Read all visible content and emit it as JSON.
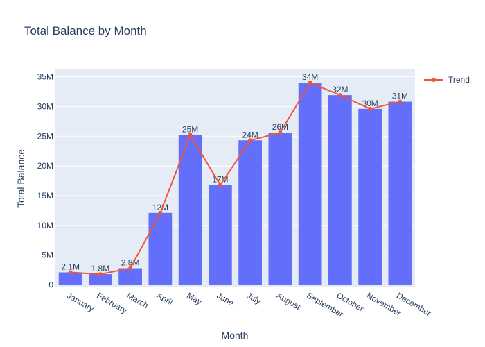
{
  "chart_data": {
    "type": "bar",
    "title": "Total Balance by Month",
    "xlabel": "Month",
    "ylabel": "Total Balance",
    "categories": [
      "January",
      "February",
      "March",
      "April",
      "May",
      "June",
      "July",
      "August",
      "September",
      "October",
      "November",
      "December"
    ],
    "values": [
      2.1,
      1.8,
      2.8,
      12.1,
      25.2,
      16.8,
      24.3,
      25.6,
      34.0,
      31.9,
      29.6,
      30.8
    ],
    "value_unit_multiplier": 1000000,
    "data_labels": [
      "2.1M",
      "1.8M",
      "2.8M",
      "12M",
      "25M",
      "17M",
      "24M",
      "26M",
      "34M",
      "32M",
      "30M",
      "31M"
    ],
    "series": [
      {
        "name": "Trend",
        "type": "line",
        "values": [
          2.1,
          1.8,
          2.8,
          12.1,
          25.2,
          16.8,
          24.3,
          25.6,
          34.0,
          31.9,
          29.6,
          30.8
        ]
      }
    ],
    "yticks": [
      0,
      5,
      10,
      15,
      20,
      25,
      30,
      35
    ],
    "ytick_labels": [
      "0",
      "5M",
      "10M",
      "15M",
      "20M",
      "25M",
      "30M",
      "35M"
    ],
    "ylim": [
      0,
      36
    ],
    "grid": true,
    "legend": "top-right",
    "colors": {
      "bar": "#636efa",
      "trend": "#ef553b",
      "plot_bg": "#e5ecf6",
      "grid": "#ffffff",
      "text": "#2a3f5f"
    }
  }
}
